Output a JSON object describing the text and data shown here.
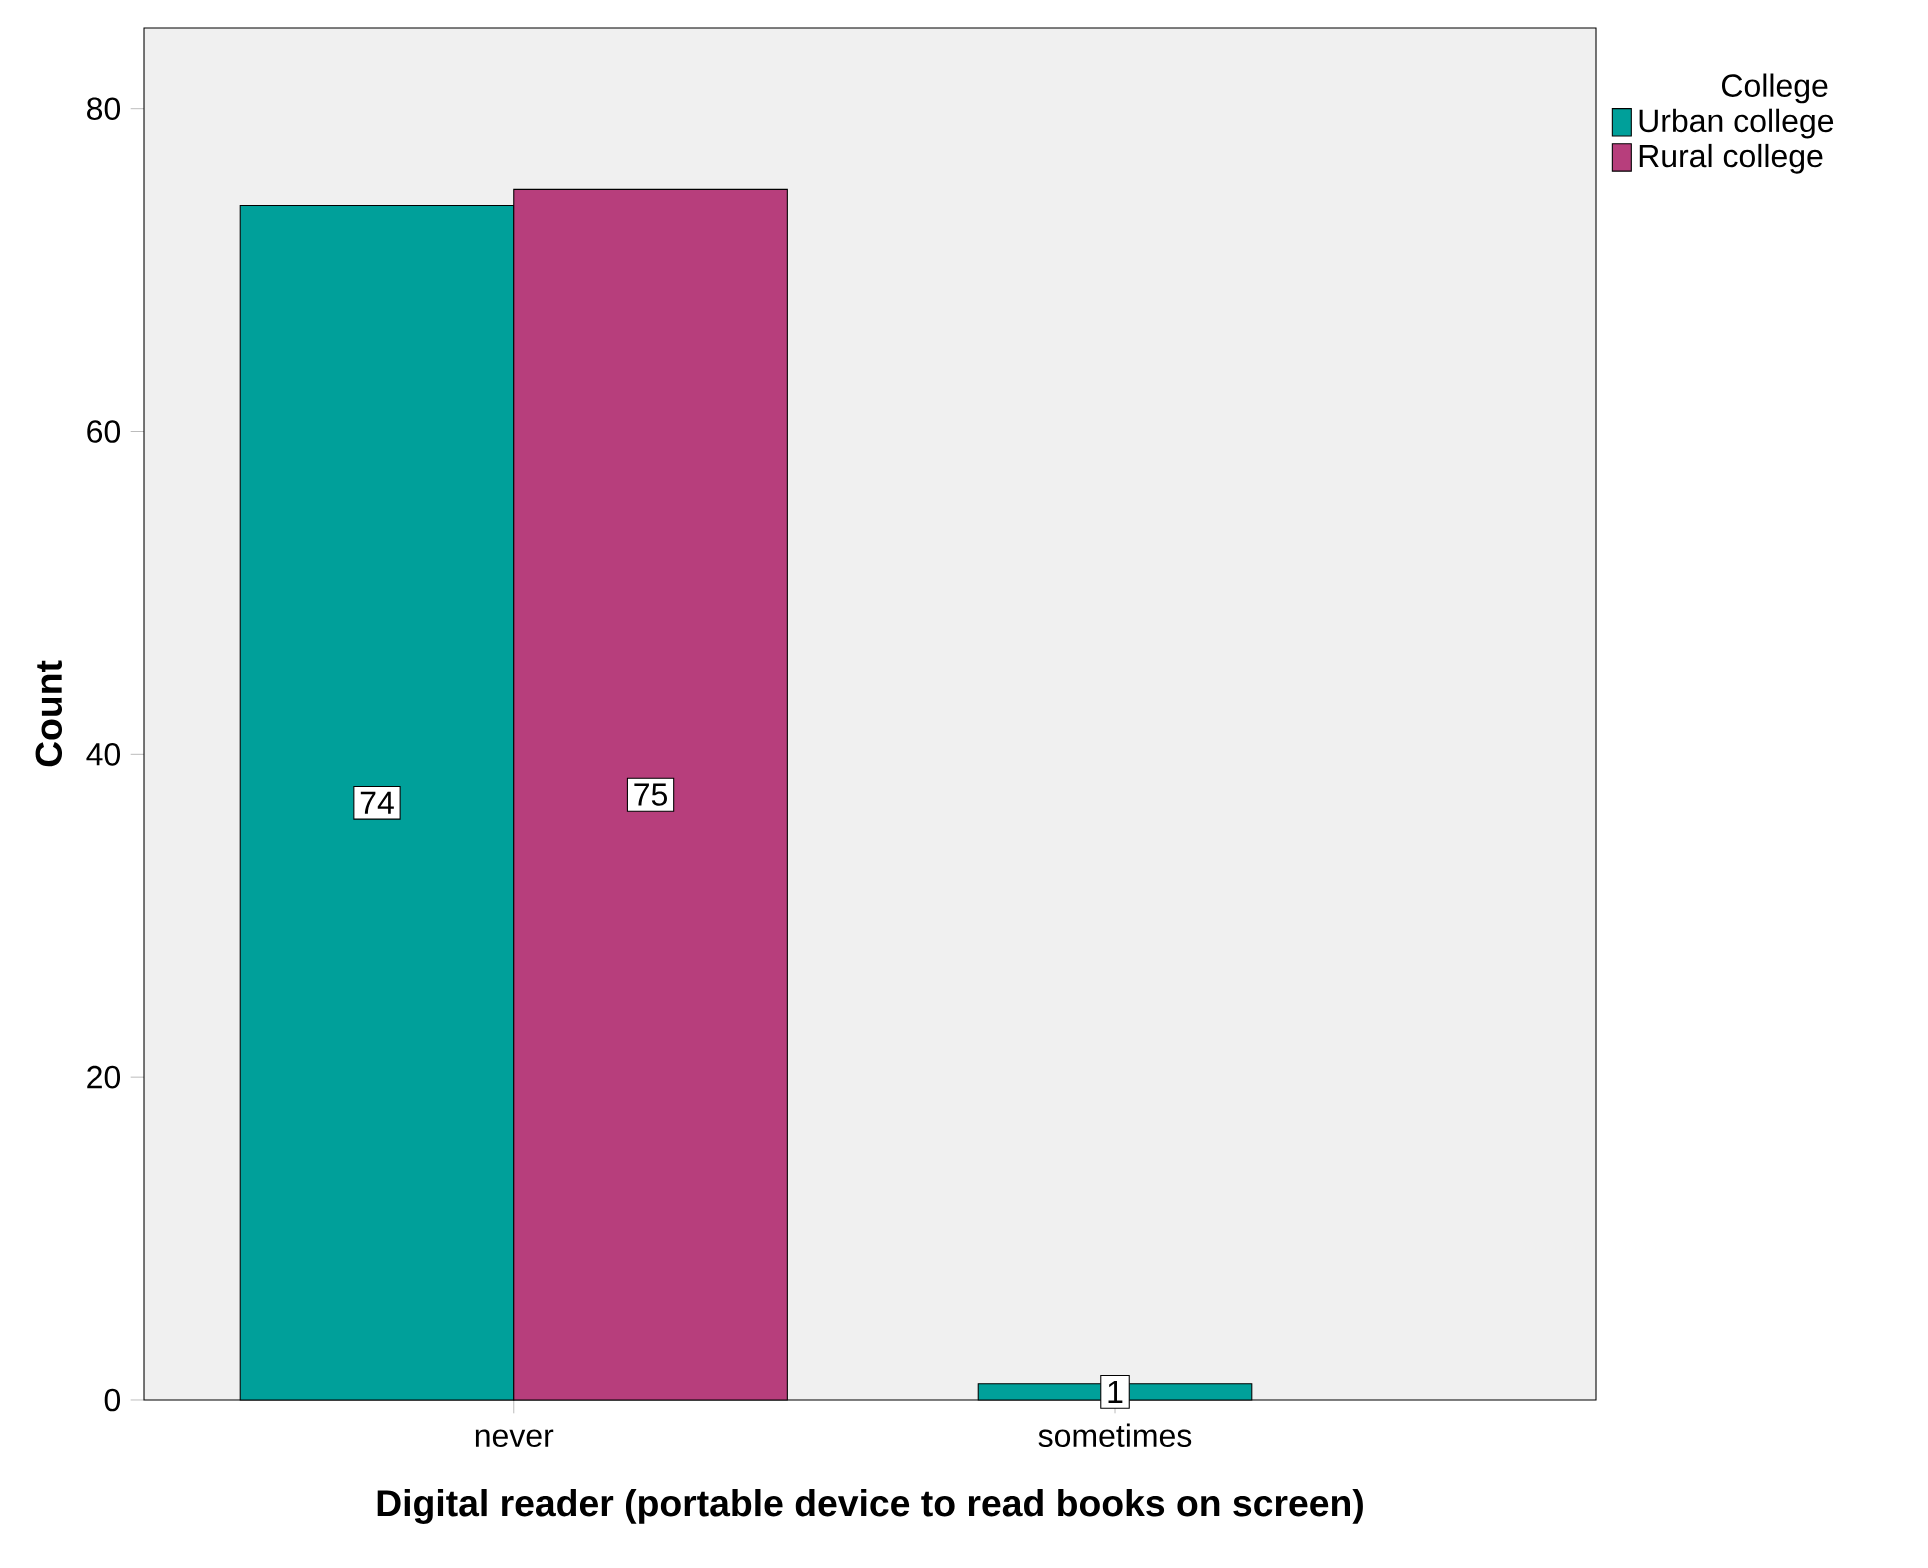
{
  "chart_data": {
    "type": "bar",
    "xlabel": "Digital reader (portable device to read books on screen)",
    "ylabel": "Count",
    "legend_title": "College",
    "categories": [
      "never",
      "sometimes"
    ],
    "series": [
      {
        "name": "Urban college",
        "color": "#00a09a",
        "values": [
          74,
          1
        ]
      },
      {
        "name": "Rural college",
        "color": "#b73e7c",
        "values": [
          75,
          null
        ]
      }
    ],
    "ylim": [
      0,
      85
    ],
    "yticks": [
      0,
      20,
      40,
      60,
      80
    ],
    "grid": false,
    "legend": "top right",
    "data_labels": true
  }
}
